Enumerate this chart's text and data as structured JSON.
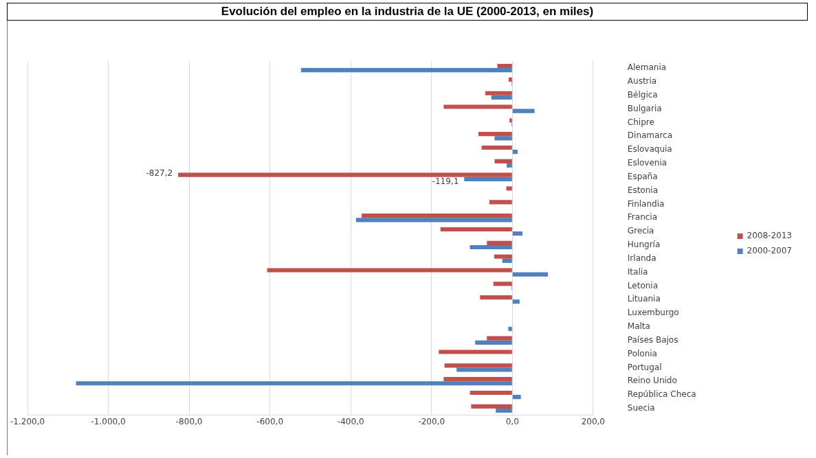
{
  "chart_data": {
    "type": "bar",
    "orientation": "horizontal",
    "title": "Evolución del empleo en la industria de la UE (2000-2013, en miles)",
    "categories": [
      "Alemania",
      "Austria",
      "Bélgica",
      "Bulgaria",
      "Chipre",
      "Dinamarca",
      "Eslovaquia",
      "Eslovenia",
      "España",
      "Estonia",
      "Finlandia",
      "Francia",
      "Grecia",
      "Hungría",
      "Irlanda",
      "Italia",
      "Letonia",
      "Lituania",
      "Luxemburgo",
      "Malta",
      "Países Bajos",
      "Polonia",
      "Portugal",
      "Reino Unido",
      "República Checa",
      "Suecia"
    ],
    "series": [
      {
        "name": "2008-2013",
        "color": "#c0504d",
        "values": [
          -37,
          -9,
          -67,
          -170,
          -7,
          -84,
          -76,
          -44,
          -827.2,
          -15,
          -57,
          -373,
          -178,
          -63,
          -45,
          -607,
          -47,
          -80,
          null,
          null,
          -63,
          -182,
          -168,
          -170,
          -105,
          -102
        ],
        "value_labels": [
          null,
          null,
          null,
          null,
          null,
          null,
          null,
          null,
          "-827,2",
          null,
          null,
          null,
          null,
          null,
          null,
          null,
          null,
          null,
          null,
          null,
          null,
          null,
          null,
          null,
          null,
          null
        ]
      },
      {
        "name": "2000-2007",
        "color": "#4f81bd",
        "values": [
          -523,
          -2,
          -52,
          55,
          -2,
          -44,
          13,
          -14,
          -119.1,
          null,
          null,
          -387,
          25,
          -105,
          -25,
          88,
          -2,
          18,
          null,
          -10,
          -92,
          null,
          -138,
          -1080,
          21,
          -41
        ],
        "value_labels": [
          null,
          null,
          null,
          null,
          null,
          null,
          null,
          null,
          "-119,1",
          null,
          null,
          null,
          null,
          null,
          null,
          null,
          null,
          null,
          null,
          null,
          null,
          null,
          null,
          null,
          null,
          null
        ]
      }
    ],
    "xlim": [
      -1200,
      200
    ],
    "xticks": [
      {
        "value": -1200,
        "label": "-1.200,0"
      },
      {
        "value": -1000,
        "label": "-1.000,0"
      },
      {
        "value": -800,
        "label": "-800,0"
      },
      {
        "value": -600,
        "label": "-600,0"
      },
      {
        "value": -400,
        "label": "-400,0"
      },
      {
        "value": -200,
        "label": "-200,0"
      },
      {
        "value": 0,
        "label": "0,0"
      },
      {
        "value": 200,
        "label": "200,0"
      }
    ],
    "grid": "x",
    "legend": "right"
  }
}
